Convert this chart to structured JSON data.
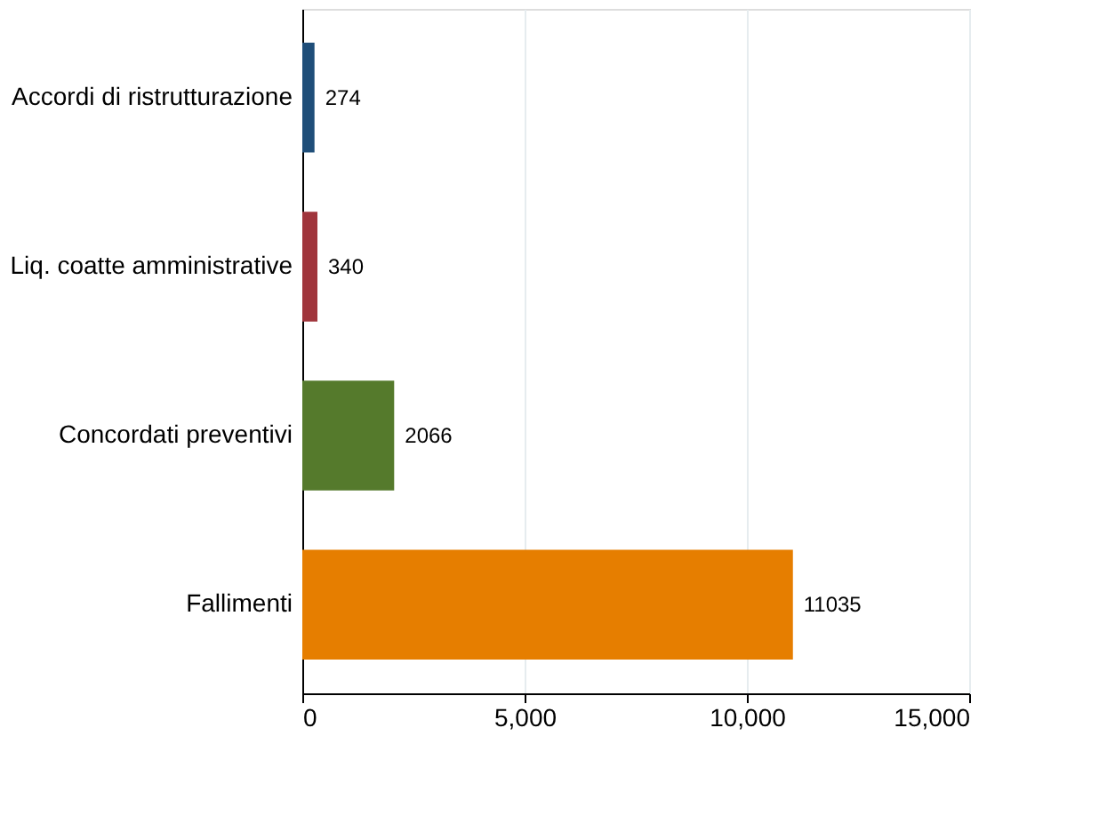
{
  "chart_data": {
    "type": "bar",
    "orientation": "horizontal",
    "categories": [
      "Accordi di ristrutturazione",
      "Liq. coatte amministrative",
      "Concordati preventivi",
      "Fallimenti"
    ],
    "values": [
      274,
      340,
      2066,
      11035
    ],
    "colors": [
      "#1f4e79",
      "#a0353c",
      "#557a2c",
      "#e67e00"
    ],
    "xlim": [
      0,
      15000
    ],
    "xticks": [
      0,
      {
        "value": 5000,
        "label": "5,000"
      },
      {
        "value": 10000,
        "label": "10,000"
      },
      {
        "value": 15000,
        "label": "15,000"
      }
    ],
    "grid": "x",
    "data_labels": true
  }
}
